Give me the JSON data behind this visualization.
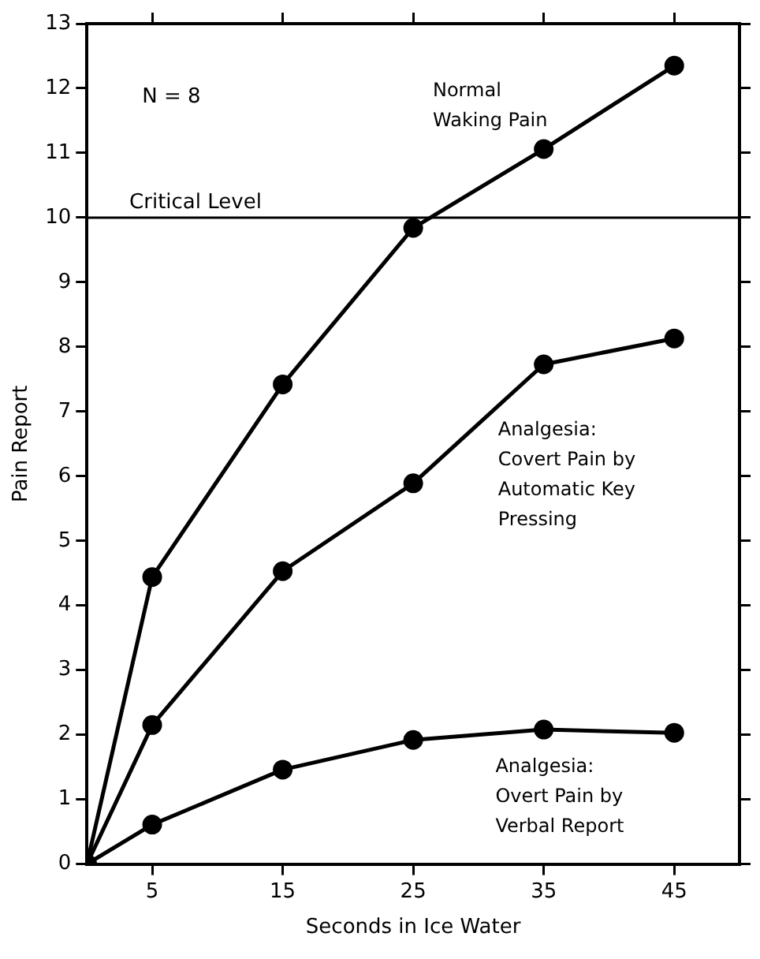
{
  "chart_data": {
    "type": "line",
    "xlabel": "Seconds in Ice Water",
    "ylabel": "Pain Report",
    "x": [
      0,
      5,
      15,
      25,
      35,
      45
    ],
    "series": [
      {
        "name": "Normal Waking Pain",
        "color": "#000000",
        "values": [
          0,
          4.44,
          7.42,
          9.84,
          11.06,
          12.35
        ]
      },
      {
        "name": "Analgesia: Covert Pain by Automatic Key Pressing",
        "color": "#000000",
        "values": [
          0,
          2.15,
          4.53,
          5.89,
          7.73,
          8.13
        ]
      },
      {
        "name": "Analgesia: Overt Pain by Verbal Report",
        "color": "#000000",
        "values": [
          0,
          0.61,
          1.46,
          1.92,
          2.08,
          2.03
        ]
      }
    ],
    "xlim": [
      0,
      50
    ],
    "xticks": [
      5,
      15,
      25,
      35,
      45
    ],
    "ylim": [
      0,
      13
    ],
    "yticks": [
      0,
      1,
      2,
      3,
      4,
      5,
      6,
      7,
      8,
      9,
      10,
      11,
      12,
      13
    ],
    "ref_lines": [
      {
        "axis": "y",
        "value": 10,
        "label": "Critical Level",
        "color": "#000000"
      }
    ],
    "annotations": [
      "N = 8"
    ],
    "grid": false,
    "legend": false,
    "marker": "circle",
    "line_style": "solid"
  }
}
